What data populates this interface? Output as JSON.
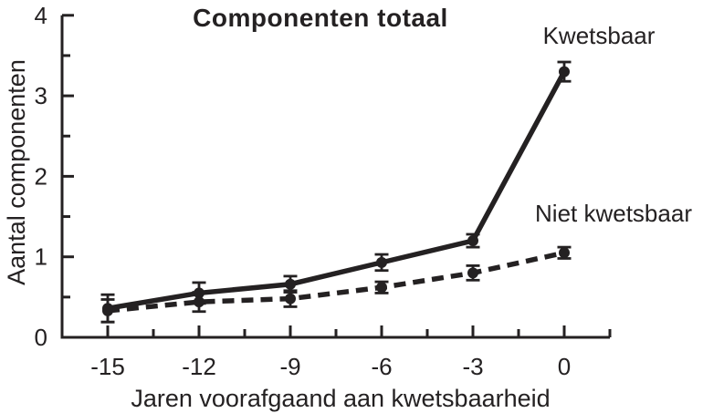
{
  "figure": {
    "background": "#ffffff",
    "ink_color": "#242122"
  },
  "chart_data": {
    "type": "line",
    "title": "Componenten totaal",
    "xlabel": "Jaren voorafgaand aan kwetsbaarheid",
    "ylabel": "Aantal componenten",
    "x": [
      -15,
      -12,
      -9,
      -6,
      -3,
      0
    ],
    "x_tick_labels": [
      "-15",
      "-12",
      "-9",
      "-6",
      "-3",
      "0"
    ],
    "x_minor_ticks": [
      -13.5,
      -10.5,
      -7.5,
      -4.5,
      -1.5,
      1.5
    ],
    "y_ticks": [
      0,
      1,
      2,
      3,
      4
    ],
    "y_tick_labels": [
      "0",
      "1",
      "2",
      "3",
      "4"
    ],
    "y_minor_ticks": [
      0.5,
      1.5,
      2.5,
      3.5
    ],
    "xlim": [
      -16.5,
      1.5
    ],
    "ylim": [
      0,
      4
    ],
    "grid": false,
    "legend_position": "inline-annotations",
    "error_bars": true,
    "series": [
      {
        "name": "Kwetsbaar",
        "slug": "kwetsbaar",
        "line_style": "solid",
        "marker": "circle",
        "values": [
          0.36,
          0.55,
          0.66,
          0.93,
          1.2,
          3.3
        ],
        "error": [
          0.17,
          0.13,
          0.1,
          0.1,
          0.08,
          0.12
        ]
      },
      {
        "name": "Niet kwetsbaar",
        "slug": "niet-kwetsbaar",
        "line_style": "dashed",
        "marker": "circle",
        "values": [
          0.33,
          0.44,
          0.48,
          0.62,
          0.8,
          1.05
        ],
        "error": [
          0.14,
          0.12,
          0.1,
          0.07,
          0.09,
          0.07
        ]
      }
    ]
  }
}
